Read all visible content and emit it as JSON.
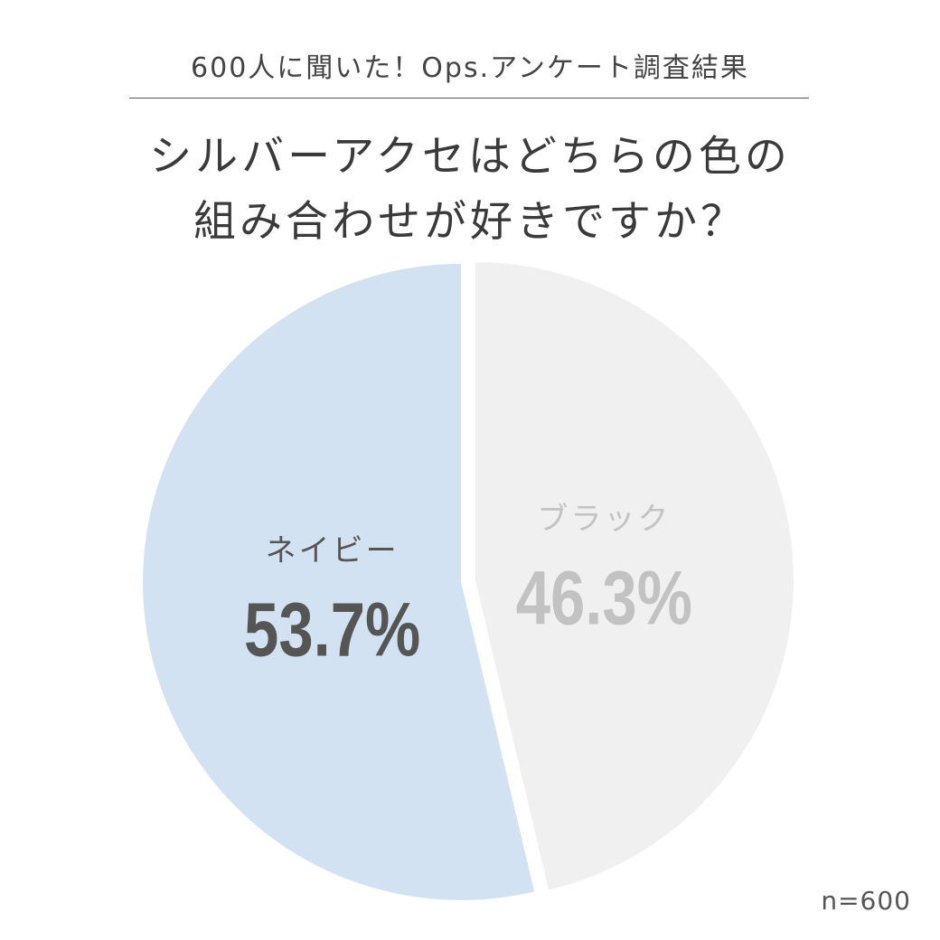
{
  "header": {
    "survey_title": "600人に聞いた！Ops.アンケート調査結果",
    "question_line1": "シルバーアクセはどちらの色の",
    "question_line2": "組み合わせが好きですか？"
  },
  "footer": {
    "sample_size": "n=600"
  },
  "chart_data": {
    "type": "pie",
    "title": "シルバーアクセはどちらの色の組み合わせが好きですか？",
    "categories": [
      "ネイビー",
      "ブラック"
    ],
    "values": [
      53.7,
      46.3
    ],
    "value_labels": [
      "53.7%",
      "46.3%"
    ],
    "colors": [
      "#d3e2f3",
      "#f0f0f0"
    ],
    "label_colors": [
      "#555555",
      "#c2c2c2"
    ],
    "start": "12 o'clock",
    "direction": "counterclockwise"
  }
}
